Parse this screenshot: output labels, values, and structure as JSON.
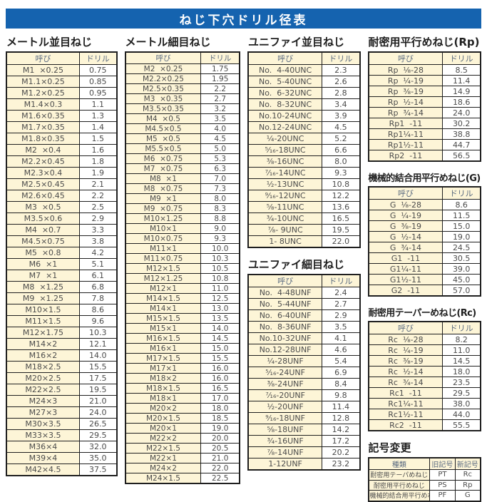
{
  "page_title": "ねじ下穴ドリル径表",
  "colors": {
    "title_bar_bg": "#1563af",
    "title_bar_text": "#ffffff",
    "cell_yellow": "#fdf5d7",
    "cell_white": "#ffffff",
    "border": "#1f1f1f",
    "body_text": "#4b4b4b",
    "header_text": "#5b6b80"
  },
  "tables": {
    "metric_coarse": {
      "title": "メートル並目ねじ",
      "headers": [
        "呼び",
        "ドリル"
      ],
      "rows": [
        [
          "M1  ×0.25",
          "0.75"
        ],
        [
          "M1.1×0.25",
          "0.85"
        ],
        [
          "M1.2×0.25",
          "0.95"
        ],
        [
          "M1.4×0.3",
          "1.1"
        ],
        [
          "M1.6×0.35",
          "1.3"
        ],
        [
          "M1.7×0.35",
          "1.4"
        ],
        [
          "M1.8×0.35",
          "1.5"
        ],
        [
          "M2  ×0.4",
          "1.6"
        ],
        [
          "M2.2×0.45",
          "1.8"
        ],
        [
          "M2.3×0.4",
          "1.9"
        ],
        [
          "M2.5×0.45",
          "2.1"
        ],
        [
          "M2.6×0.45",
          "2.2"
        ],
        [
          "M3  ×0.5",
          "2.5"
        ],
        [
          "M3.5×0.6",
          "2.9"
        ],
        [
          "M4  ×0.7",
          "3.3"
        ],
        [
          "M4.5×0.75",
          "3.8"
        ],
        [
          "M5  ×0.8",
          "4.2"
        ],
        [
          "M6  ×1",
          "5.1"
        ],
        [
          "M7  ×1",
          "6.1"
        ],
        [
          "M8  ×1.25",
          "6.8"
        ],
        [
          "M9  ×1.25",
          "7.8"
        ],
        [
          "M10×1.5",
          "8.6"
        ],
        [
          "M11×1.5",
          "9.6"
        ],
        [
          "M12×1.75",
          "10.3"
        ],
        [
          "M14×2",
          "12.1"
        ],
        [
          "M16×2",
          "14.0"
        ],
        [
          "M18×2.5",
          "15.5"
        ],
        [
          "M20×2.5",
          "17.5"
        ],
        [
          "M22×2.5",
          "19.5"
        ],
        [
          "M24×3",
          "21.0"
        ],
        [
          "M27×3",
          "24.0"
        ],
        [
          "M30×3.5",
          "26.5"
        ],
        [
          "M33×3.5",
          "29.5"
        ],
        [
          "M36×4",
          "32.0"
        ],
        [
          "M39×4",
          "35.0"
        ],
        [
          "M42×4.5",
          "37.5"
        ]
      ]
    },
    "metric_fine": {
      "title": "メートル細目ねじ",
      "headers": [
        "呼び",
        "ドリル"
      ],
      "rows": [
        [
          "M2  ×0.25",
          "1.75"
        ],
        [
          "M2.2×0.25",
          "1.95"
        ],
        [
          "M2.5×0.35",
          "2.2"
        ],
        [
          "M3  ×0.35",
          "2.7"
        ],
        [
          "M3.5×0.35",
          "3.2"
        ],
        [
          "M4  ×0.5",
          "3.5"
        ],
        [
          "M4.5×0.5",
          "4.0"
        ],
        [
          "M5  ×0.5",
          "4.5"
        ],
        [
          "M5.5×0.5",
          "5.0"
        ],
        [
          "M6  ×0.75",
          "5.3"
        ],
        [
          "M7  ×0.75",
          "6.3"
        ],
        [
          "M8  ×1",
          "7.0"
        ],
        [
          "M8  ×0.75",
          "7.3"
        ],
        [
          "M9  ×1",
          "8.0"
        ],
        [
          "M9  ×0.75",
          "8.3"
        ],
        [
          "M10×1.25",
          "8.8"
        ],
        [
          "M10×1",
          "9.0"
        ],
        [
          "M10×0.75",
          "9.3"
        ],
        [
          "M11×1",
          "10.0"
        ],
        [
          "M11×0.75",
          "10.3"
        ],
        [
          "M12×1.5",
          "10.5"
        ],
        [
          "M12×1.25",
          "10.8"
        ],
        [
          "M12×1",
          "11.0"
        ],
        [
          "M14×1.5",
          "12.5"
        ],
        [
          "M14×1",
          "13.0"
        ],
        [
          "M15×1.5",
          "13.5"
        ],
        [
          "M15×1",
          "14.0"
        ],
        [
          "M16×1.5",
          "14.5"
        ],
        [
          "M16×1",
          "15.0"
        ],
        [
          "M17×1.5",
          "15.5"
        ],
        [
          "M17×1",
          "16.0"
        ],
        [
          "M18×2",
          "16.0"
        ],
        [
          "M18×1.5",
          "16.5"
        ],
        [
          "M18×1",
          "17.0"
        ],
        [
          "M20×2",
          "18.0"
        ],
        [
          "M20×1.5",
          "18.5"
        ],
        [
          "M20×1",
          "19.0"
        ],
        [
          "M22×2",
          "20.0"
        ],
        [
          "M22×1.5",
          "20.5"
        ],
        [
          "M22×1",
          "21.0"
        ],
        [
          "M24×2",
          "22.0"
        ],
        [
          "M24×1.5",
          "22.5"
        ]
      ]
    },
    "unified_coarse": {
      "title": "ユニファイ並目ねじ",
      "headers": [
        "呼び",
        "ドリル"
      ],
      "rows": [
        [
          "No.  4-40UNC",
          "2.3"
        ],
        [
          "No.  5-40UNC",
          "2.6"
        ],
        [
          "No.  6-32UNC",
          "2.8"
        ],
        [
          "No.  8-32UNC",
          "3.4"
        ],
        [
          "No.10-24UNC",
          "3.9"
        ],
        [
          "No.12-24UNC",
          "4.5"
        ],
        [
          "¹⁄₄-20UNC",
          "5.2"
        ],
        [
          "⁵⁄₁₆-18UNC",
          "6.6"
        ],
        [
          "³⁄₈-16UNC",
          "8.0"
        ],
        [
          "⁷⁄₁₆-14UNC",
          "9.3"
        ],
        [
          "¹⁄₂-13UNC",
          "10.8"
        ],
        [
          "⁹⁄₁₆-12UNC",
          "12.2"
        ],
        [
          "⁵⁄₈-11UNC",
          "13.6"
        ],
        [
          "³⁄₄-10UNC",
          "16.5"
        ],
        [
          "⁷⁄₈- 9UNC",
          "19.5"
        ],
        [
          "1- 8UNC",
          "22.0"
        ]
      ]
    },
    "unified_fine": {
      "title": "ユニファイ細目ねじ",
      "headers": [
        "呼び",
        "ドリル"
      ],
      "rows": [
        [
          "No.  4-48UNF",
          "2.4"
        ],
        [
          "No.  5-44UNF",
          "2.7"
        ],
        [
          "No.  6-40UNF",
          "2.9"
        ],
        [
          "No.  8-36UNF",
          "3.5"
        ],
        [
          "No.10-32UNF",
          "4.1"
        ],
        [
          "No.12-28UNF",
          "4.6"
        ],
        [
          "¹⁄₄-28UNF",
          "5.4"
        ],
        [
          "⁵⁄₁₆-24UNF",
          "6.9"
        ],
        [
          "³⁄₈-24UNF",
          "8.4"
        ],
        [
          "⁷⁄₁₆-20UNF",
          "9.8"
        ],
        [
          "¹⁄₂-20UNF",
          "11.4"
        ],
        [
          "⁹⁄₁₆-18UNF",
          "12.8"
        ],
        [
          "⁵⁄₈-18UNF",
          "14.2"
        ],
        [
          "³⁄₄-16UNF",
          "17.2"
        ],
        [
          "⁷⁄₈-14UNF",
          "20.2"
        ],
        [
          "1-12UNF",
          "23.2"
        ]
      ]
    },
    "rp_parallel": {
      "title": "耐密用平行めねじ(Rp)",
      "headers": [
        "呼び",
        "ドリル"
      ],
      "rows": [
        [
          "Rp  ¹⁄₈-28",
          "8.5"
        ],
        [
          "Rp  ¹⁄₄-19",
          "11.4"
        ],
        [
          "Rp  ³⁄₈-19",
          "14.9"
        ],
        [
          "Rp  ¹⁄₂-14",
          "18.6"
        ],
        [
          "Rp  ³⁄₄-14",
          "24.0"
        ],
        [
          "Rp1  -11",
          "30.2"
        ],
        [
          "Rp1¹⁄₄-11",
          "38.8"
        ],
        [
          "Rp1¹⁄₂-11",
          "44.7"
        ],
        [
          "Rp2  -11",
          "56.5"
        ]
      ]
    },
    "g_parallel": {
      "title": "機械的結合用平行めねじ(G)",
      "headers": [
        "呼び",
        "ドリル"
      ],
      "rows": [
        [
          "G  ¹⁄₈-28",
          "8.6"
        ],
        [
          "G  ¹⁄₄-19",
          "11.5"
        ],
        [
          "G  ³⁄₈-19",
          "15.0"
        ],
        [
          "G  ¹⁄₂-14",
          "19.0"
        ],
        [
          "G  ³⁄₄-14",
          "24.5"
        ],
        [
          "G1  -11",
          "30.5"
        ],
        [
          "G1¹⁄₄-11",
          "39.0"
        ],
        [
          "G1¹⁄₂-11",
          "45.0"
        ],
        [
          "G2  -11",
          "57.0"
        ]
      ]
    },
    "rc_taper": {
      "title": "耐密用テーパーめねじ(Rc)",
      "headers": [
        "呼び",
        "ドリル"
      ],
      "rows": [
        [
          "Rc  ¹⁄₈-28",
          "8.2"
        ],
        [
          "Rc  ¹⁄₄-19",
          "11.0"
        ],
        [
          "Rc  ³⁄₈-19",
          "14.5"
        ],
        [
          "Rc  ¹⁄₂-14",
          "18.0"
        ],
        [
          "Rc  ³⁄₄-14",
          "23.5"
        ],
        [
          "Rc1  -11",
          "29.5"
        ],
        [
          "Rc1¹⁄₄-11",
          "38.0"
        ],
        [
          "Rc1¹⁄₂-11",
          "44.0"
        ],
        [
          "Rc2  -11",
          "55.5"
        ]
      ]
    },
    "symbol_change": {
      "title": "記号変更",
      "headers": [
        "種類",
        "旧記号",
        "新記号"
      ],
      "rows": [
        [
          "耐密用テーパめねじ",
          "PT",
          "Rc"
        ],
        [
          "耐密用平行めねじ",
          "PS",
          "Rp"
        ],
        [
          "機械的結合用平行めねじ",
          "PF",
          "G"
        ]
      ]
    }
  }
}
